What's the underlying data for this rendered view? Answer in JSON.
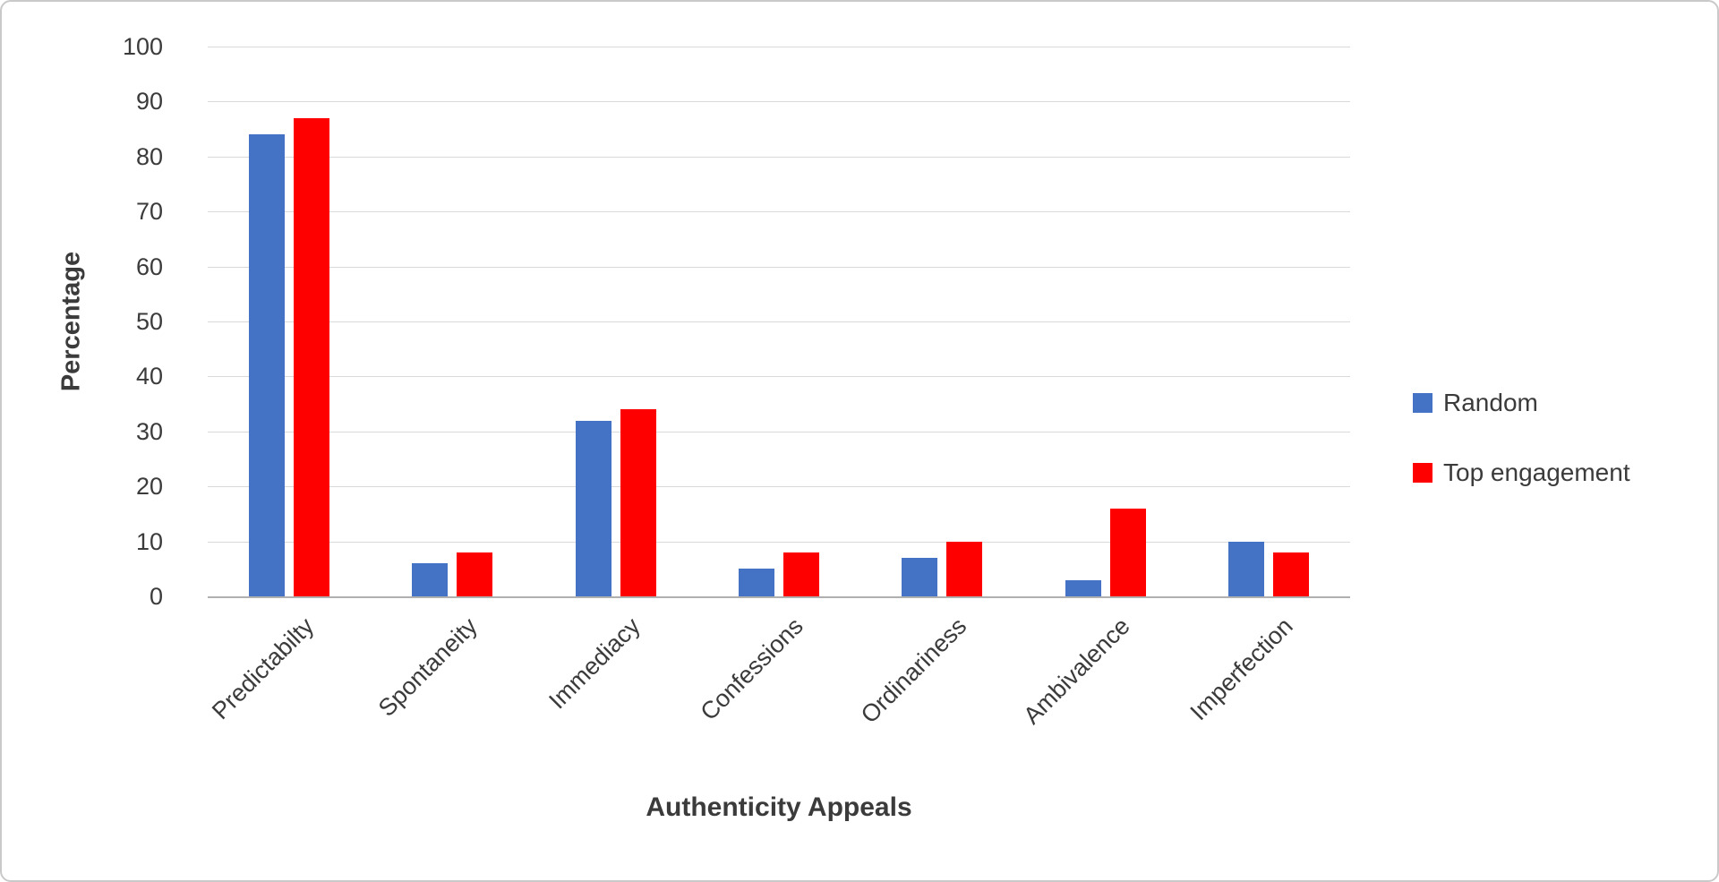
{
  "chart_data": {
    "type": "bar",
    "title": "",
    "xlabel": "Authenticity Appeals",
    "ylabel": "Percentage",
    "categories": [
      "Predictabilty",
      "Spontaneity",
      "Immediacy",
      "Confessions",
      "Ordinariness",
      "Ambivalence",
      "Imperfection"
    ],
    "series": [
      {
        "name": "Random",
        "color": "#4472C4",
        "values": [
          84,
          6,
          32,
          5,
          7,
          3,
          10
        ]
      },
      {
        "name": "Top engagement",
        "color": "#FF0000",
        "values": [
          87,
          8,
          34,
          8,
          10,
          16,
          8
        ]
      }
    ],
    "ylim": [
      0,
      100
    ],
    "ytick_step": 10,
    "grid": true,
    "legend_position": "right"
  }
}
